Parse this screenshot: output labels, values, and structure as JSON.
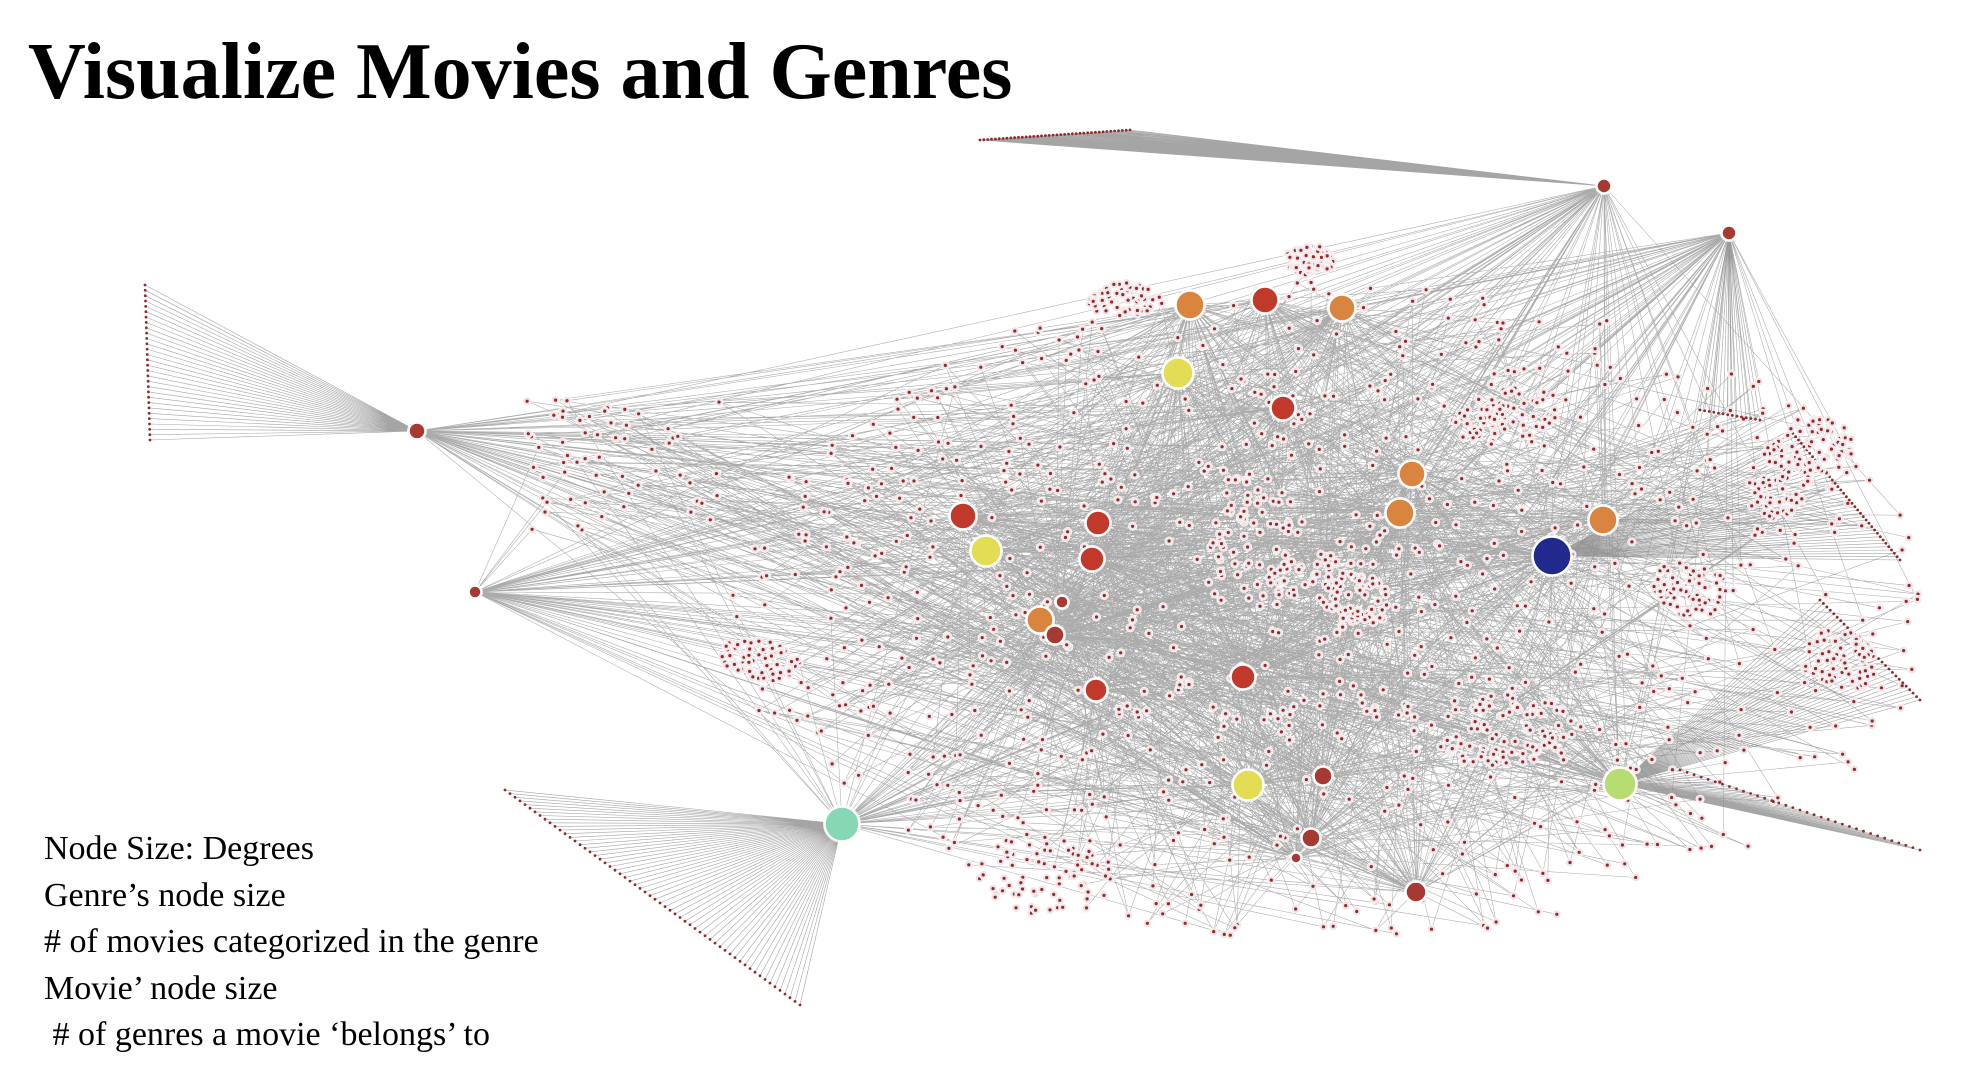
{
  "title": "Visualize Movies and Genres",
  "legend": {
    "line1": "Node Size: Degrees",
    "line2": "Genre’s node size",
    "line3": "# of movies categorized in the genre",
    "line4": "Movie’ node size",
    "line5": " # of genres a movie ‘belongs’ to"
  },
  "colors": {
    "edge": "#8f8f8f",
    "movie_node_fill": "#f1e3e6",
    "movie_node_center": "#8e2b2b",
    "genre_red": "#c0392b",
    "genre_dark_red": "#a63a32",
    "genre_orange": "#d9843f",
    "genre_yellow": "#e3dc55",
    "genre_light_green": "#b6dc72",
    "genre_mint": "#86d8b4",
    "genre_navy": "#1f2a8c"
  }
}
